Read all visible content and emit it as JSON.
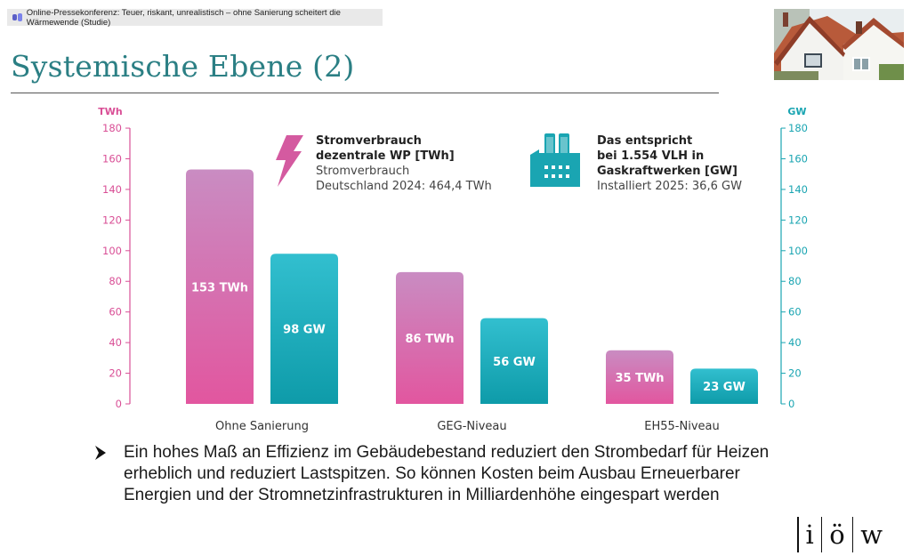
{
  "window": {
    "title": "Online-Pressekonferenz: Teuer, riskant, unrealistisch – ohne Sanierung scheitert die Wärmewende (Studie)"
  },
  "slide": {
    "title": "Systemische Ebene (2)",
    "bullet_text": "Ein hohes Maß an Effizienz im Gebäudebestand reduziert den Strombedarf für Heizen erheblich und reduziert Lastspitzen. So können Kosten beim Ausbau Erneuerbarer Energien und der Stromnetzinfrastrukturen in Milliardenhöhe eingespart werden",
    "logo": {
      "letters": [
        "i",
        "ö",
        "w"
      ]
    }
  },
  "colors": {
    "title": "#2b7f84",
    "pink_top": "#c98cc2",
    "pink_bottom": "#e2569f",
    "teal_top": "#32bfcf",
    "teal_bottom": "#0e9ba9",
    "left_axis": "#d94f96",
    "right_axis": "#1aa5b2"
  },
  "chart_data": {
    "type": "bar",
    "categories": [
      "Ohne Sanierung",
      "GEG-Niveau",
      "EH55-Niveau"
    ],
    "series": [
      {
        "name": "Stromverbrauch dezentrale WP [TWh]",
        "values": [
          153,
          86,
          35
        ],
        "labels": [
          "153 TWh",
          "86 TWh",
          "35 TWh"
        ],
        "axis": "left"
      },
      {
        "name": "Das entspricht bei 1.554 VLH in Gaskraftwerken [GW]",
        "values": [
          98,
          56,
          23
        ],
        "labels": [
          "98 GW",
          "56 GW",
          "23 GW"
        ],
        "axis": "right"
      }
    ],
    "left_axis": {
      "unit": "TWh",
      "min": 0,
      "max": 180,
      "ticks": [
        0,
        20,
        40,
        60,
        80,
        100,
        120,
        140,
        160,
        180
      ]
    },
    "right_axis": {
      "unit": "GW",
      "min": 0,
      "max": 180,
      "ticks": [
        0,
        20,
        40,
        60,
        80,
        100,
        120,
        140,
        160,
        180
      ]
    },
    "grid": false,
    "legend": [
      {
        "icon": "lightning-icon",
        "title_lines": [
          "Stromverbrauch",
          "dezentrale WP [TWh]"
        ],
        "sub_lines": [
          "Stromverbrauch",
          "Deutschland 2024: 464,4 TWh"
        ]
      },
      {
        "icon": "power-plant-icon",
        "title_lines": [
          "Das entspricht",
          "bei 1.554 VLH in",
          "Gaskraftwerken [GW]"
        ],
        "sub_lines": [
          "Installiert 2025: 36,6 GW"
        ]
      }
    ]
  }
}
